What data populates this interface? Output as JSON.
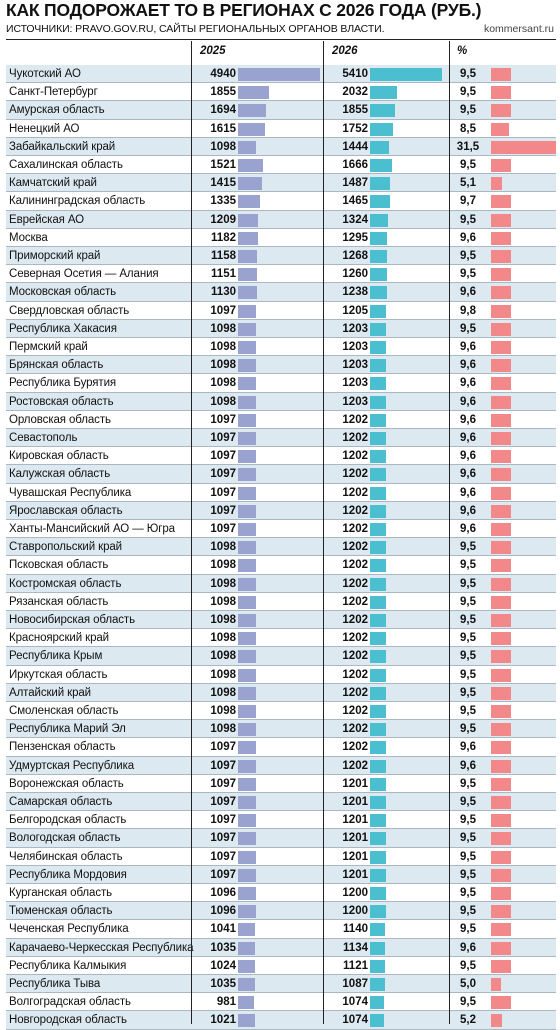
{
  "header": {
    "title": "КАК ПОДОРОЖАЕТ ТО В РЕГИОНАХ С 2026 ГОДА (РУБ.)",
    "sources": "ИСТОЧНИКИ: PRAVO.GOV.RU, САЙТЫ РЕГИОНАЛЬНЫХ ОРГАНОВ ВЛАСТИ.",
    "brand": "kommersant.ru"
  },
  "columns": {
    "y2025": "2025",
    "y2026": "2026",
    "pct": "%"
  },
  "colors": {
    "bar_2025": "#9aa3d0",
    "bar_2026": "#4bbfd0",
    "bar_pct": "#f2888a",
    "row_alt": "#dde9f1"
  },
  "chart_data": {
    "type": "table",
    "title": "КАК ПОДОРОЖАЕТ ТО В РЕГИОНАХ С 2026 ГОДА (РУБ.)",
    "series": [
      {
        "name": "2025"
      },
      {
        "name": "2026"
      },
      {
        "name": "%"
      }
    ],
    "rows": [
      {
        "region": "Чукотский АО",
        "v2025": "4940",
        "v2026": "5410",
        "pct": "9,5"
      },
      {
        "region": "Санкт-Петербург",
        "v2025": "1855",
        "v2026": "2032",
        "pct": "9,5"
      },
      {
        "region": "Амурская область",
        "v2025": "1694",
        "v2026": "1855",
        "pct": "9,5"
      },
      {
        "region": "Ненецкий АО",
        "v2025": "1615",
        "v2026": "1752",
        "pct": "8,5"
      },
      {
        "region": "Забайкальский край",
        "v2025": "1098",
        "v2026": "1444",
        "pct": "31,5"
      },
      {
        "region": "Сахалинская область",
        "v2025": "1521",
        "v2026": "1666",
        "pct": "9,5"
      },
      {
        "region": "Камчатский край",
        "v2025": "1415",
        "v2026": "1487",
        "pct": "5,1"
      },
      {
        "region": "Калининградская область",
        "v2025": "1335",
        "v2026": "1465",
        "pct": "9,7"
      },
      {
        "region": "Еврейская АО",
        "v2025": "1209",
        "v2026": "1324",
        "pct": "9,5"
      },
      {
        "region": "Москва",
        "v2025": "1182",
        "v2026": "1295",
        "pct": "9,6"
      },
      {
        "region": "Приморский край",
        "v2025": "1158",
        "v2026": "1268",
        "pct": "9,5"
      },
      {
        "region": "Северная Осетия — Алания",
        "v2025": "1151",
        "v2026": "1260",
        "pct": "9,5"
      },
      {
        "region": "Московская область",
        "v2025": "1130",
        "v2026": "1238",
        "pct": "9,6"
      },
      {
        "region": "Свердловская область",
        "v2025": "1097",
        "v2026": "1205",
        "pct": "9,8"
      },
      {
        "region": "Республика Хакасия",
        "v2025": "1098",
        "v2026": "1203",
        "pct": "9,5"
      },
      {
        "region": "Пермский край",
        "v2025": "1098",
        "v2026": "1203",
        "pct": "9,6"
      },
      {
        "region": "Брянская область",
        "v2025": "1098",
        "v2026": "1203",
        "pct": "9,6"
      },
      {
        "region": "Республика Бурятия",
        "v2025": "1098",
        "v2026": "1203",
        "pct": "9,6"
      },
      {
        "region": "Ростовская область",
        "v2025": "1098",
        "v2026": "1203",
        "pct": "9,6"
      },
      {
        "region": "Орловская область",
        "v2025": "1097",
        "v2026": "1202",
        "pct": "9,6"
      },
      {
        "region": "Севастополь",
        "v2025": "1097",
        "v2026": "1202",
        "pct": "9,6"
      },
      {
        "region": "Кировская область",
        "v2025": "1097",
        "v2026": "1202",
        "pct": "9,6"
      },
      {
        "region": "Калужская область",
        "v2025": "1097",
        "v2026": "1202",
        "pct": "9,6"
      },
      {
        "region": "Чувашская Республика",
        "v2025": "1097",
        "v2026": "1202",
        "pct": "9,6"
      },
      {
        "region": "Ярославская область",
        "v2025": "1097",
        "v2026": "1202",
        "pct": "9,6"
      },
      {
        "region": "Ханты-Мансийский АО — Югра",
        "v2025": "1097",
        "v2026": "1202",
        "pct": "9,6"
      },
      {
        "region": "Ставропольский край",
        "v2025": "1098",
        "v2026": "1202",
        "pct": "9,5"
      },
      {
        "region": "Псковская область",
        "v2025": "1098",
        "v2026": "1202",
        "pct": "9,5"
      },
      {
        "region": "Костромская область",
        "v2025": "1098",
        "v2026": "1202",
        "pct": "9,5"
      },
      {
        "region": "Рязанская область",
        "v2025": "1098",
        "v2026": "1202",
        "pct": "9,5"
      },
      {
        "region": "Новосибирская область",
        "v2025": "1098",
        "v2026": "1202",
        "pct": "9,5"
      },
      {
        "region": "Красноярский край",
        "v2025": "1098",
        "v2026": "1202",
        "pct": "9,5"
      },
      {
        "region": "Республика Крым",
        "v2025": "1098",
        "v2026": "1202",
        "pct": "9,5"
      },
      {
        "region": "Иркутская область",
        "v2025": "1098",
        "v2026": "1202",
        "pct": "9,5"
      },
      {
        "region": "Алтайский край",
        "v2025": "1098",
        "v2026": "1202",
        "pct": "9,5"
      },
      {
        "region": "Смоленская область",
        "v2025": "1098",
        "v2026": "1202",
        "pct": "9,5"
      },
      {
        "region": "Республика Марий Эл",
        "v2025": "1098",
        "v2026": "1202",
        "pct": "9,5"
      },
      {
        "region": "Пензенская область",
        "v2025": "1097",
        "v2026": "1202",
        "pct": "9,6"
      },
      {
        "region": "Удмуртская Республика",
        "v2025": "1097",
        "v2026": "1202",
        "pct": "9,6"
      },
      {
        "region": "Воронежская область",
        "v2025": "1097",
        "v2026": "1201",
        "pct": "9,5"
      },
      {
        "region": "Самарская область",
        "v2025": "1097",
        "v2026": "1201",
        "pct": "9,5"
      },
      {
        "region": "Белгородская область",
        "v2025": "1097",
        "v2026": "1201",
        "pct": "9,5"
      },
      {
        "region": "Вологодская область",
        "v2025": "1097",
        "v2026": "1201",
        "pct": "9,5"
      },
      {
        "region": "Челябинская область",
        "v2025": "1097",
        "v2026": "1201",
        "pct": "9,5"
      },
      {
        "region": "Республика Мордовия",
        "v2025": "1097",
        "v2026": "1201",
        "pct": "9,5"
      },
      {
        "region": "Курганская область",
        "v2025": "1096",
        "v2026": "1200",
        "pct": "9,5"
      },
      {
        "region": "Тюменская область",
        "v2025": "1096",
        "v2026": "1200",
        "pct": "9,5"
      },
      {
        "region": "Чеченская Республика",
        "v2025": "1041",
        "v2026": "1140",
        "pct": "9,5"
      },
      {
        "region": "Карачаево-Черкесская Республика",
        "v2025": "1035",
        "v2026": "1134",
        "pct": "9,6"
      },
      {
        "region": "Республика Калмыкия",
        "v2025": "1024",
        "v2026": "1121",
        "pct": "9,5"
      },
      {
        "region": "Республика Тыва",
        "v2025": "1035",
        "v2026": "1087",
        "pct": "5,0"
      },
      {
        "region": "Волгоградская область",
        "v2025": "981",
        "v2026": "1074",
        "pct": "9,5"
      },
      {
        "region": "Новгородская область",
        "v2025": "1021",
        "v2026": "1074",
        "pct": "5,2"
      }
    ]
  }
}
